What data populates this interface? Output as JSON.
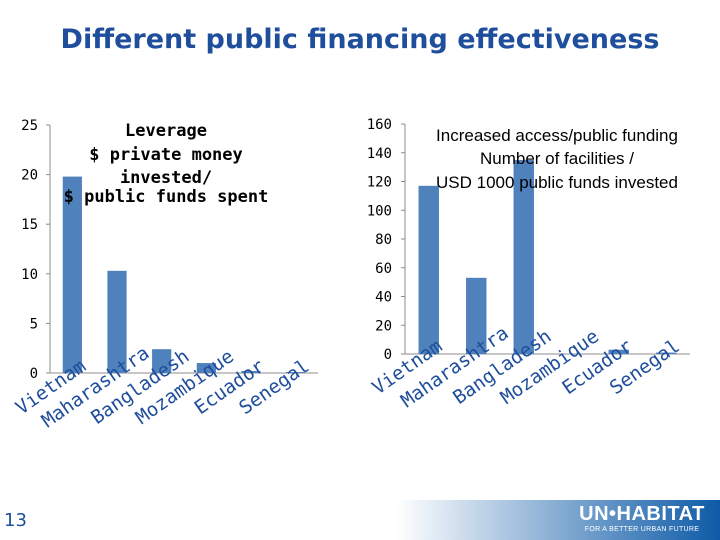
{
  "slide_title": "Different public financing effectiveness",
  "page_number": "13",
  "logo": {
    "main": "UN•HABITAT",
    "tagline": "FOR A BETTER URBAN FUTURE"
  },
  "colors": {
    "bar": "#4f81bd",
    "title": "#1f4e9c",
    "category_text": "#1f4e9c"
  },
  "chart_data": [
    {
      "type": "bar",
      "title_lines": [
        "Leverage",
        "$ private money",
        "invested/",
        "$ public funds spent"
      ],
      "categories": [
        "Vietnam",
        "Maharashtra",
        "Bangladesh",
        "Mozambique",
        "Ecuador",
        "Senegal"
      ],
      "values": [
        19.8,
        10.3,
        2.4,
        1.0,
        0.2,
        0.1
      ],
      "ylim": [
        0,
        25
      ],
      "yticks": [
        0,
        5,
        10,
        15,
        20,
        25
      ],
      "xlabel": "",
      "ylabel": "",
      "grid": false,
      "legend": "none"
    },
    {
      "type": "bar",
      "title_lines": [
        "Increased access/public funding",
        "Number of facilities /",
        "USD 1000 public funds invested"
      ],
      "categories": [
        "Vietnam",
        "Maharashtra",
        "Bangladesh",
        "Mozambique",
        "Ecuador",
        "Senegal"
      ],
      "values": [
        117,
        53,
        135,
        0,
        3,
        1
      ],
      "ylim": [
        0,
        160
      ],
      "yticks": [
        0,
        20,
        40,
        60,
        80,
        100,
        120,
        140,
        160
      ],
      "xlabel": "",
      "ylabel": "",
      "grid": false,
      "legend": "none"
    }
  ]
}
